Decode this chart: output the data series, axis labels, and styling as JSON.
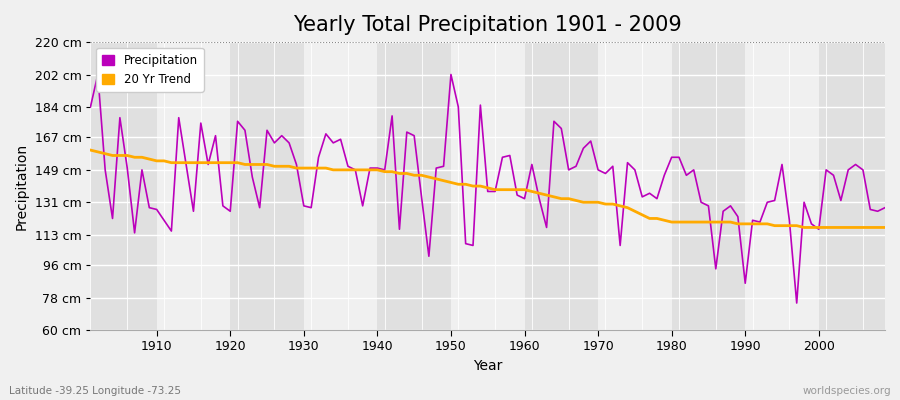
{
  "title": "Yearly Total Precipitation 1901 - 2009",
  "xlabel": "Year",
  "ylabel": "Precipitation",
  "subtitle_left": "Latitude -39.25 Longitude -73.25",
  "subtitle_right": "worldspecies.org",
  "ylim": [
    60,
    220
  ],
  "yticks": [
    60,
    78,
    96,
    113,
    131,
    149,
    167,
    184,
    202,
    220
  ],
  "ytick_labels": [
    "60 cm",
    "78 cm",
    "96 cm",
    "113 cm",
    "131 cm",
    "149 cm",
    "167 cm",
    "184 cm",
    "202 cm",
    "220 cm"
  ],
  "years": [
    1901,
    1902,
    1903,
    1904,
    1905,
    1906,
    1907,
    1908,
    1909,
    1910,
    1911,
    1912,
    1913,
    1914,
    1915,
    1916,
    1917,
    1918,
    1919,
    1920,
    1921,
    1922,
    1923,
    1924,
    1925,
    1926,
    1927,
    1928,
    1929,
    1930,
    1931,
    1932,
    1933,
    1934,
    1935,
    1936,
    1937,
    1938,
    1939,
    1940,
    1941,
    1942,
    1943,
    1944,
    1945,
    1946,
    1947,
    1948,
    1949,
    1950,
    1951,
    1952,
    1953,
    1954,
    1955,
    1956,
    1957,
    1958,
    1959,
    1960,
    1961,
    1962,
    1963,
    1964,
    1965,
    1966,
    1967,
    1968,
    1969,
    1970,
    1971,
    1972,
    1973,
    1974,
    1975,
    1976,
    1977,
    1978,
    1979,
    1980,
    1981,
    1982,
    1983,
    1984,
    1985,
    1986,
    1987,
    1988,
    1989,
    1990,
    1991,
    1992,
    1993,
    1994,
    1995,
    1996,
    1997,
    1998,
    1999,
    2000,
    2001,
    2002,
    2003,
    2004,
    2005,
    2006,
    2007,
    2008,
    2009
  ],
  "precipitation": [
    184,
    202,
    149,
    122,
    178,
    150,
    114,
    149,
    128,
    127,
    121,
    115,
    178,
    152,
    126,
    175,
    152,
    168,
    129,
    126,
    176,
    171,
    145,
    128,
    171,
    164,
    168,
    164,
    152,
    129,
    128,
    156,
    169,
    164,
    166,
    151,
    149,
    129,
    150,
    150,
    149,
    179,
    116,
    170,
    168,
    134,
    101,
    150,
    151,
    202,
    184,
    108,
    107,
    185,
    137,
    137,
    156,
    157,
    135,
    133,
    152,
    133,
    117,
    176,
    172,
    149,
    151,
    161,
    165,
    149,
    147,
    151,
    107,
    153,
    149,
    134,
    136,
    133,
    146,
    156,
    156,
    146,
    149,
    131,
    129,
    94,
    126,
    129,
    123,
    86,
    121,
    120,
    131,
    132,
    152,
    121,
    75,
    131,
    119,
    116,
    149,
    146,
    132,
    149,
    152,
    149,
    127,
    126,
    128
  ],
  "trend": [
    160,
    159,
    158,
    157,
    157,
    157,
    156,
    156,
    155,
    154,
    154,
    153,
    153,
    153,
    153,
    153,
    153,
    153,
    153,
    153,
    153,
    152,
    152,
    152,
    152,
    151,
    151,
    151,
    150,
    150,
    150,
    150,
    150,
    149,
    149,
    149,
    149,
    149,
    149,
    149,
    148,
    148,
    147,
    147,
    146,
    146,
    145,
    144,
    143,
    142,
    141,
    141,
    140,
    140,
    139,
    138,
    138,
    138,
    138,
    138,
    137,
    136,
    135,
    134,
    133,
    133,
    132,
    131,
    131,
    131,
    130,
    130,
    129,
    128,
    126,
    124,
    122,
    122,
    121,
    120,
    120,
    120,
    120,
    120,
    120,
    120,
    120,
    120,
    119,
    119,
    119,
    119,
    119,
    118,
    118,
    118,
    118,
    117,
    117,
    117,
    117,
    117,
    117,
    117,
    117,
    117,
    117,
    117,
    117
  ],
  "precip_color": "#bb00bb",
  "trend_color": "#ffaa00",
  "bg_color": "#f0f0f0",
  "plot_bg_color": "#f0f0f0",
  "band_color_dark": "#e0e0e0",
  "band_color_light": "#f0f0f0",
  "grid_color": "#ffffff",
  "top_dotted_color": "#888888",
  "title_fontsize": 15,
  "label_fontsize": 10,
  "tick_fontsize": 9,
  "xticks": [
    1910,
    1920,
    1930,
    1940,
    1950,
    1960,
    1970,
    1980,
    1990,
    2000
  ]
}
